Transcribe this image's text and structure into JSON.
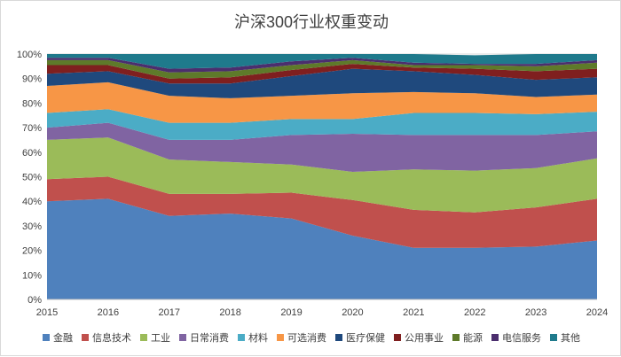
{
  "chart_data": {
    "type": "area",
    "stacked": true,
    "percent": true,
    "title": "沪深300行业权重变动",
    "xlabel": "",
    "ylabel": "",
    "ylim": [
      0,
      100
    ],
    "yticks": [
      "0%",
      "10%",
      "20%",
      "30%",
      "40%",
      "50%",
      "60%",
      "70%",
      "80%",
      "90%",
      "100%"
    ],
    "x": [
      "2015",
      "2016",
      "2017",
      "2018",
      "2019",
      "2020",
      "2021",
      "2022",
      "2023",
      "2024"
    ],
    "grid": true,
    "legend_position": "bottom",
    "series": [
      {
        "name": "金融",
        "color": "#4f81bd",
        "values": [
          40,
          41,
          34,
          35,
          33,
          26,
          21,
          21,
          21.5,
          24
        ]
      },
      {
        "name": "信息技术",
        "color": "#c0504d",
        "values": [
          9,
          9,
          9,
          8,
          10.5,
          14.5,
          15.5,
          14.5,
          16,
          17
        ]
      },
      {
        "name": "工业",
        "color": "#9bbb59",
        "values": [
          16,
          16,
          14,
          13,
          11.5,
          11.5,
          16.5,
          17,
          16,
          16.5
        ]
      },
      {
        "name": "日常消费",
        "color": "#8064a2",
        "values": [
          5,
          6,
          8,
          9,
          12,
          15.5,
          14,
          14.5,
          13.5,
          11
        ]
      },
      {
        "name": "材料",
        "color": "#4bacc6",
        "values": [
          6,
          5.5,
          7,
          7,
          6.5,
          6,
          9,
          9,
          8.5,
          8
        ]
      },
      {
        "name": "可选消费",
        "color": "#f79646",
        "values": [
          11,
          11,
          11,
          10,
          9.5,
          10.5,
          8.5,
          8,
          7,
          7
        ]
      },
      {
        "name": "医疗保健",
        "color": "#1f497d",
        "values": [
          5,
          4.5,
          5,
          6,
          8,
          10,
          8.5,
          7.5,
          7,
          7
        ]
      },
      {
        "name": "公用事业",
        "color": "#7f1f1f",
        "values": [
          3.5,
          2.5,
          2,
          2.5,
          2.5,
          2,
          1.5,
          2.5,
          3.5,
          3.5
        ]
      },
      {
        "name": "能源",
        "color": "#5e7a2a",
        "values": [
          2,
          2,
          2.5,
          2.5,
          2,
          1.5,
          1,
          1.5,
          2,
          2.5
        ]
      },
      {
        "name": "电信服务",
        "color": "#4b2e6e",
        "values": [
          1,
          1,
          1.5,
          1.5,
          1.5,
          1,
          1,
          0.5,
          1,
          1
        ]
      },
      {
        "name": "其他",
        "color": "#1f7a8c",
        "values": [
          1.5,
          1.5,
          6,
          5.5,
          3,
          1.5,
          3.5,
          3.5,
          4,
          2.5
        ]
      }
    ]
  }
}
